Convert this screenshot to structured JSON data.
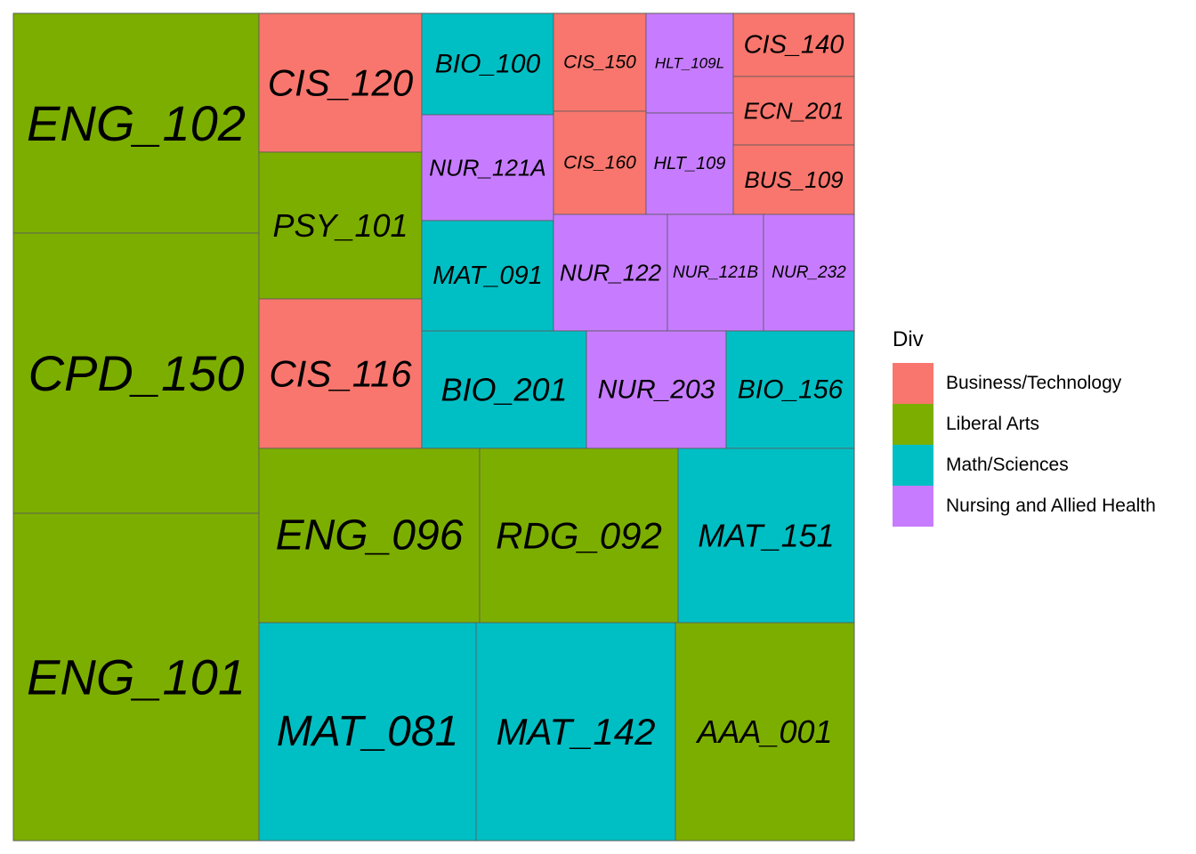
{
  "chart_data": {
    "type": "treemap",
    "legend": {
      "title": "Div",
      "position": "right",
      "entries": [
        {
          "name": "Business/Technology",
          "color": "#F8766D"
        },
        {
          "name": "Liberal Arts",
          "color": "#7CAE00"
        },
        {
          "name": "Math/Sciences",
          "color": "#00BFC4"
        },
        {
          "name": "Nursing and Allied Health",
          "color": "#C77CFF"
        }
      ]
    },
    "tiles": [
      {
        "label": "ENG_102",
        "div": "Liberal Arts"
      },
      {
        "label": "CPD_150",
        "div": "Liberal Arts"
      },
      {
        "label": "ENG_101",
        "div": "Liberal Arts"
      },
      {
        "label": "CIS_120",
        "div": "Business/Technology"
      },
      {
        "label": "PSY_101",
        "div": "Liberal Arts"
      },
      {
        "label": "CIS_116",
        "div": "Business/Technology"
      },
      {
        "label": "BIO_100",
        "div": "Math/Sciences"
      },
      {
        "label": "NUR_121A",
        "div": "Nursing and Allied Health"
      },
      {
        "label": "MAT_091",
        "div": "Math/Sciences"
      },
      {
        "label": "CIS_150",
        "div": "Business/Technology"
      },
      {
        "label": "HLT_109L",
        "div": "Nursing and Allied Health"
      },
      {
        "label": "CIS_140",
        "div": "Business/Technology"
      },
      {
        "label": "ECN_201",
        "div": "Business/Technology"
      },
      {
        "label": "CIS_160",
        "div": "Business/Technology"
      },
      {
        "label": "HLT_109",
        "div": "Nursing and Allied Health"
      },
      {
        "label": "BUS_109",
        "div": "Business/Technology"
      },
      {
        "label": "NUR_122",
        "div": "Nursing and Allied Health"
      },
      {
        "label": "NUR_121B",
        "div": "Nursing and Allied Health"
      },
      {
        "label": "NUR_232",
        "div": "Nursing and Allied Health"
      },
      {
        "label": "BIO_201",
        "div": "Math/Sciences"
      },
      {
        "label": "NUR_203",
        "div": "Nursing and Allied Health"
      },
      {
        "label": "BIO_156",
        "div": "Math/Sciences"
      },
      {
        "label": "ENG_096",
        "div": "Liberal Arts"
      },
      {
        "label": "RDG_092",
        "div": "Liberal Arts"
      },
      {
        "label": "MAT_151",
        "div": "Math/Sciences"
      },
      {
        "label": "MAT_081",
        "div": "Math/Sciences"
      },
      {
        "label": "MAT_142",
        "div": "Math/Sciences"
      },
      {
        "label": "AAA_001",
        "div": "Liberal Arts"
      }
    ]
  }
}
